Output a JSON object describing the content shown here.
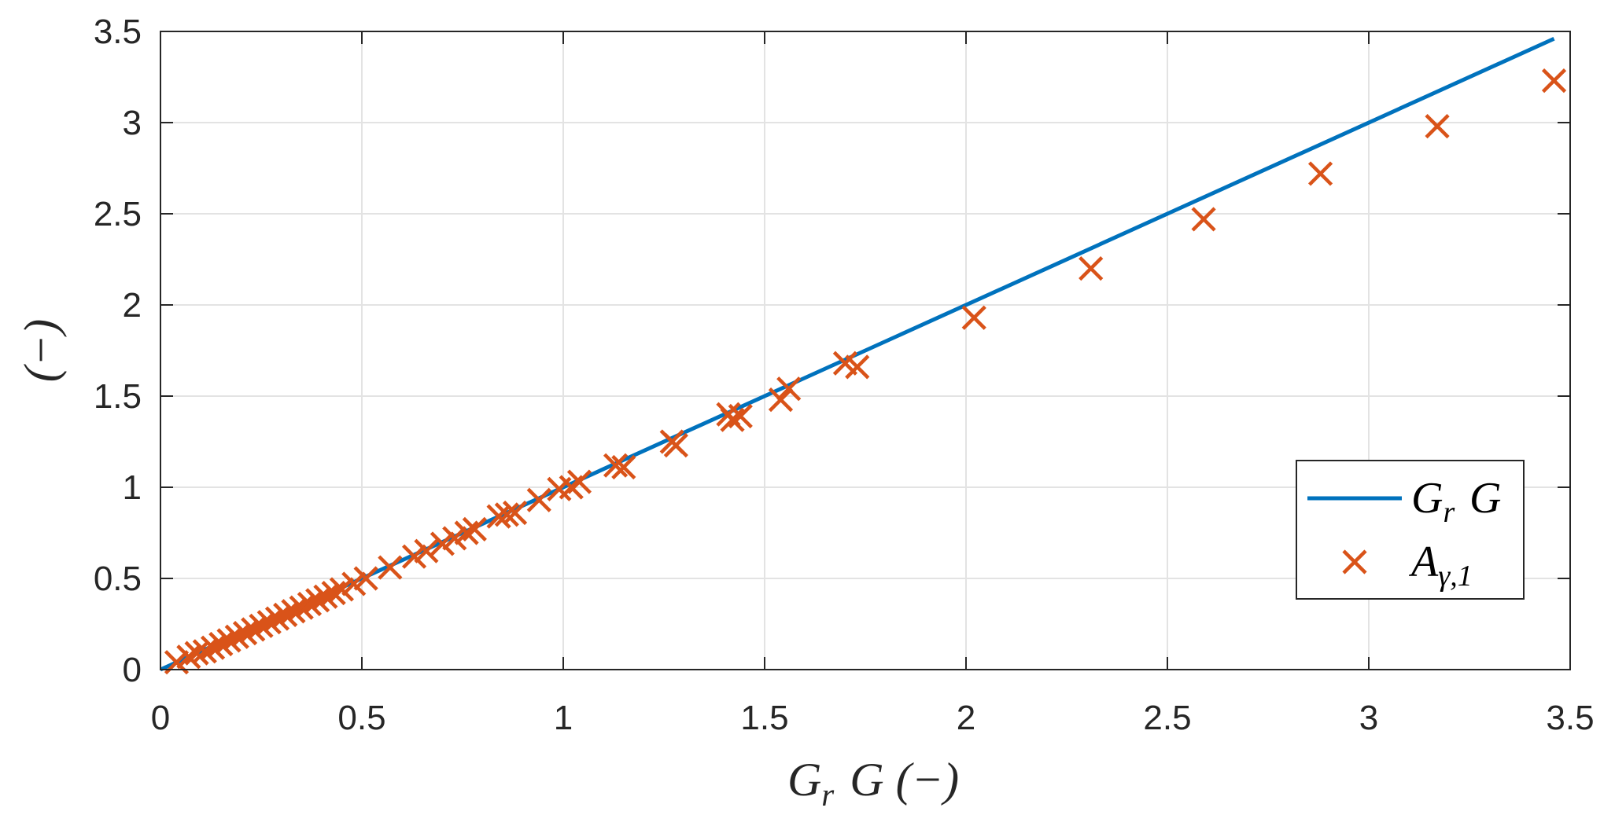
{
  "chart_data": {
    "type": "line",
    "xlabel": "G_r G (−)",
    "ylabel": "(−)",
    "xlim": [
      0,
      3.5
    ],
    "ylim": [
      0,
      3.5
    ],
    "xticks": [
      0,
      0.5,
      1,
      1.5,
      2,
      2.5,
      3,
      3.5
    ],
    "yticks": [
      0,
      0.5,
      1,
      1.5,
      2,
      2.5,
      3,
      3.5
    ],
    "xtick_labels": [
      "0",
      "0.5",
      "1",
      "1.5",
      "2",
      "2.5",
      "3",
      "3.5"
    ],
    "ytick_labels": [
      "0",
      "0.5",
      "1",
      "1.5",
      "2",
      "2.5",
      "3",
      "3.5"
    ],
    "grid": true,
    "legend_position": "bottom-right",
    "series": [
      {
        "name": "G_r G",
        "kind": "line",
        "color": "#0072BD",
        "points": [
          [
            0,
            0
          ],
          [
            3.46,
            3.46
          ]
        ]
      },
      {
        "name": "A_{γ,1}",
        "kind": "scatter",
        "marker": "x",
        "color": "#D95319",
        "points": [
          [
            0.04,
            0.04
          ],
          [
            0.07,
            0.07
          ],
          [
            0.09,
            0.09
          ],
          [
            0.11,
            0.1
          ],
          [
            0.13,
            0.12
          ],
          [
            0.15,
            0.14
          ],
          [
            0.17,
            0.16
          ],
          [
            0.19,
            0.18
          ],
          [
            0.21,
            0.2
          ],
          [
            0.23,
            0.22
          ],
          [
            0.25,
            0.24
          ],
          [
            0.27,
            0.26
          ],
          [
            0.29,
            0.28
          ],
          [
            0.31,
            0.3
          ],
          [
            0.33,
            0.32
          ],
          [
            0.35,
            0.34
          ],
          [
            0.37,
            0.36
          ],
          [
            0.39,
            0.38
          ],
          [
            0.41,
            0.4
          ],
          [
            0.43,
            0.42
          ],
          [
            0.45,
            0.44
          ],
          [
            0.48,
            0.47
          ],
          [
            0.51,
            0.5
          ],
          [
            0.57,
            0.56
          ],
          [
            0.63,
            0.62
          ],
          [
            0.66,
            0.65
          ],
          [
            0.7,
            0.69
          ],
          [
            0.73,
            0.72
          ],
          [
            0.76,
            0.75
          ],
          [
            0.78,
            0.77
          ],
          [
            0.84,
            0.84
          ],
          [
            0.86,
            0.85
          ],
          [
            0.88,
            0.86
          ],
          [
            0.94,
            0.93
          ],
          [
            0.99,
            0.99
          ],
          [
            1.02,
            1.0
          ],
          [
            1.04,
            1.03
          ],
          [
            1.13,
            1.12
          ],
          [
            1.15,
            1.11
          ],
          [
            1.27,
            1.25
          ],
          [
            1.28,
            1.23
          ],
          [
            1.41,
            1.4
          ],
          [
            1.42,
            1.37
          ],
          [
            1.44,
            1.39
          ],
          [
            1.54,
            1.48
          ],
          [
            1.56,
            1.54
          ],
          [
            1.7,
            1.68
          ],
          [
            1.73,
            1.66
          ],
          [
            2.02,
            1.93
          ],
          [
            2.31,
            2.2
          ],
          [
            2.59,
            2.47
          ],
          [
            2.88,
            2.72
          ],
          [
            3.17,
            2.98
          ],
          [
            3.46,
            3.23
          ]
        ]
      }
    ]
  }
}
